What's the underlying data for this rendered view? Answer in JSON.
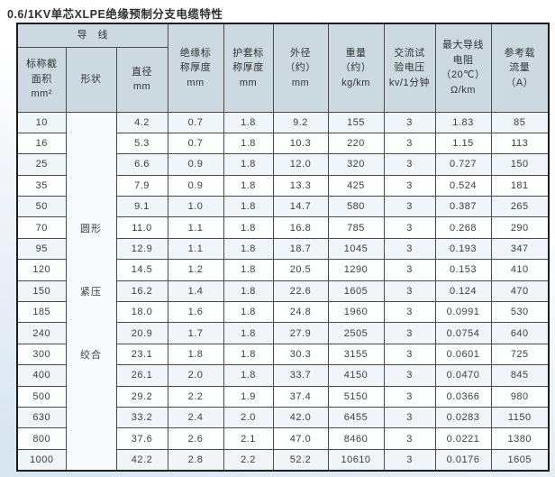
{
  "page_title": "0.6/1KV单芯XLPE绝缘预制分支电缆特性",
  "colors": {
    "header_bg": "#cdd9e1",
    "row_stripe": "#eff5f9",
    "row_plain": "#fdfefe",
    "border_inner": "#4a4a4a",
    "border_outer": "#1c1c1c",
    "page_gradient_end": "#d8e6f2"
  },
  "table": {
    "group_header": "导　线",
    "headers": {
      "section": "标称截\n面积\nmm²",
      "shape": "形状",
      "diameter": "直径\nmm",
      "insulation": "绝缘标\n称厚度\nmm",
      "sheath": "护套标\n称厚度\nmm",
      "od": "外径\n（约）\nmm",
      "weight": "重量\n（约）\nkg/km",
      "test_voltage": "交流试\n验电压\nkv/1分钟",
      "resistance": "最大导线\n电阻\n（20℃）\nΩ/km",
      "ampacity": "参考载\n流量\n（A）"
    },
    "shape_labels": [
      "圆形",
      "紧压",
      "绞合"
    ],
    "rows": [
      [
        "10",
        "4.2",
        "0.7",
        "1.8",
        "9.2",
        "155",
        "3",
        "1.83",
        "85"
      ],
      [
        "16",
        "5.3",
        "0.7",
        "1.8",
        "10.3",
        "220",
        "3",
        "1.15",
        "113"
      ],
      [
        "25",
        "6.6",
        "0.9",
        "1.8",
        "12.0",
        "320",
        "3",
        "0.727",
        "150"
      ],
      [
        "35",
        "7.9",
        "0.9",
        "1.8",
        "13.3",
        "425",
        "3",
        "0.524",
        "181"
      ],
      [
        "50",
        "9.1",
        "1.0",
        "1.8",
        "14.7",
        "580",
        "3",
        "0.387",
        "265"
      ],
      [
        "70",
        "11.0",
        "1.1",
        "1.8",
        "16.8",
        "785",
        "3",
        "0.268",
        "290"
      ],
      [
        "95",
        "12.9",
        "1.1",
        "1.8",
        "18.7",
        "1045",
        "3",
        "0.193",
        "347"
      ],
      [
        "120",
        "14.5",
        "1.2",
        "1.8",
        "20.5",
        "1290",
        "3",
        "0.153",
        "410"
      ],
      [
        "150",
        "16.2",
        "1.4",
        "1.8",
        "22.6",
        "1605",
        "3",
        "0.124",
        "470"
      ],
      [
        "185",
        "18.0",
        "1.6",
        "1.8",
        "24.8",
        "1960",
        "3",
        "0.0991",
        "530"
      ],
      [
        "240",
        "20.9",
        "1.7",
        "1.8",
        "27.9",
        "2505",
        "3",
        "0.0754",
        "640"
      ],
      [
        "300",
        "23.1",
        "1.8",
        "1.8",
        "30.3",
        "3155",
        "3",
        "0.0601",
        "725"
      ],
      [
        "400",
        "26.1",
        "2.0",
        "1.8",
        "33.7",
        "4150",
        "3",
        "0.0470",
        "845"
      ],
      [
        "500",
        "29.2",
        "2.2",
        "1.9",
        "37.4",
        "5150",
        "3",
        "0.0366",
        "980"
      ],
      [
        "630",
        "33.2",
        "2.4",
        "2.0",
        "42.0",
        "6455",
        "3",
        "0.0283",
        "1150"
      ],
      [
        "800",
        "37.6",
        "2.6",
        "2.1",
        "47.0",
        "8460",
        "3",
        "0.0221",
        "1380"
      ],
      [
        "1000",
        "42.2",
        "2.8",
        "2.2",
        "52.2",
        "10610",
        "3",
        "0.0176",
        "1605"
      ]
    ]
  }
}
